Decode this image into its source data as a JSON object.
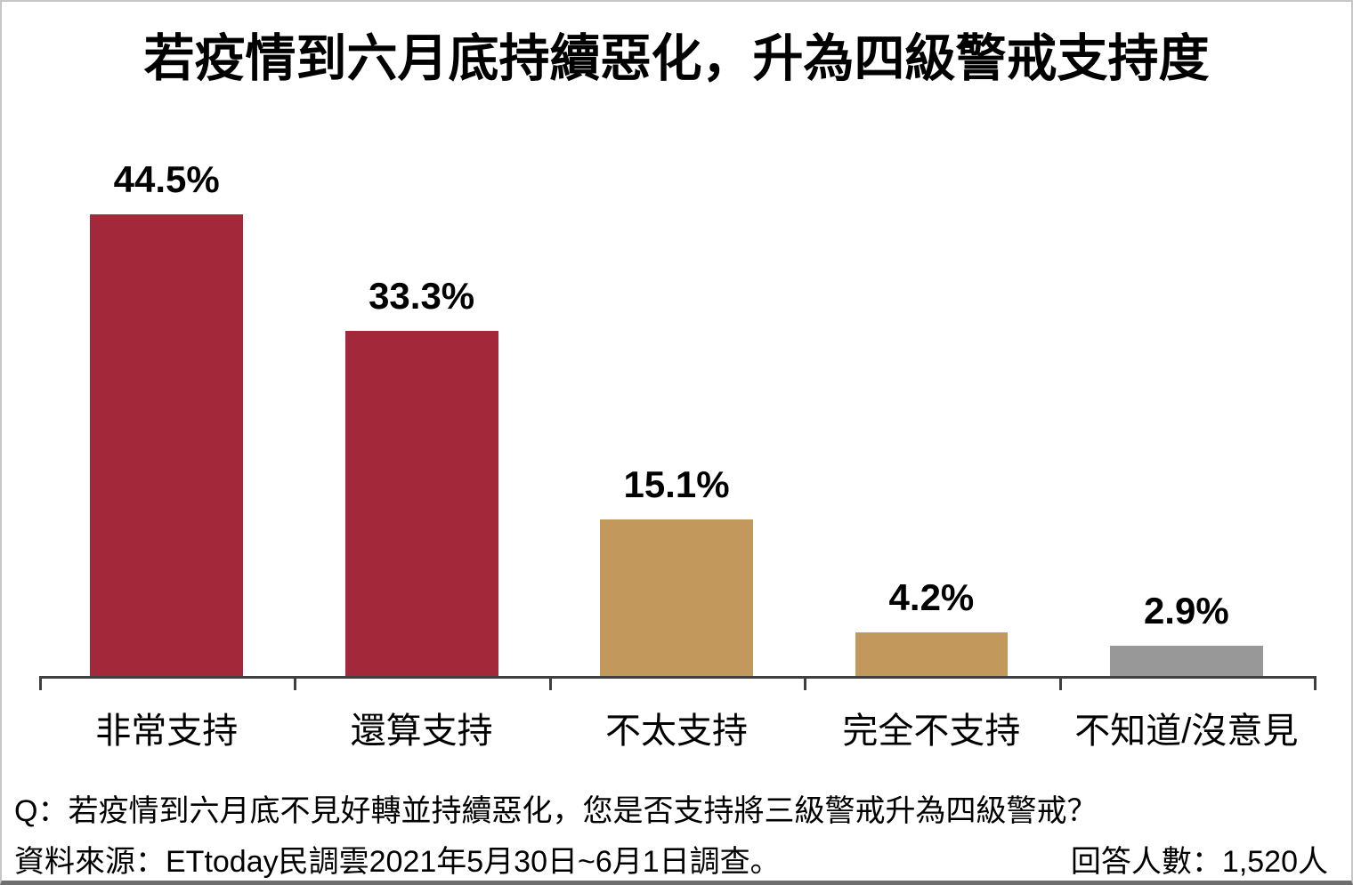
{
  "title": "若疫情到六月底持續惡化，升為四級警戒支持度",
  "chart_data": {
    "type": "bar",
    "title": "若疫情到六月底持續惡化，升為四級警戒支持度",
    "categories": [
      "非常支持",
      "還算支持",
      "不太支持",
      "完全不支持",
      "不知道/沒意見"
    ],
    "values": [
      44.5,
      33.3,
      15.1,
      4.2,
      2.9
    ],
    "value_labels": [
      "44.5%",
      "33.3%",
      "15.1%",
      "4.2%",
      "2.9%"
    ],
    "bar_colors": [
      "#a3293a",
      "#a3293a",
      "#c2985c",
      "#c2985c",
      "#989898"
    ],
    "xlabel": "",
    "ylabel": "",
    "ylim": [
      0,
      50
    ],
    "grid": false,
    "legend": false,
    "axis_color": "#3f3f3f",
    "value_label_color": "#000000",
    "category_label_color": "#000000"
  },
  "footer": {
    "question": "Q：若疫情到六月底不見好轉並持續惡化，您是否支持將三級警戒升為四級警戒？",
    "source": "資料來源：ETtoday民調雲2021年5月30日~6月1日調查。",
    "respondents": "回答人數：1,520人"
  }
}
